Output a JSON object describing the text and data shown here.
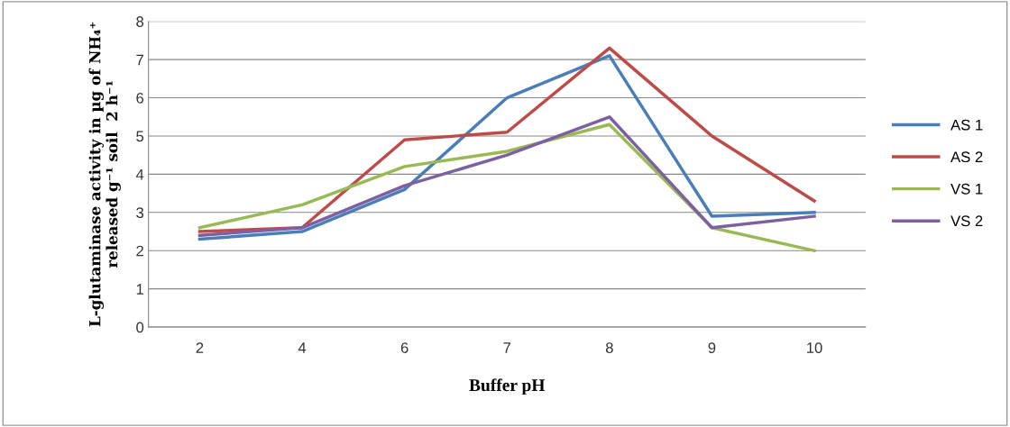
{
  "chart_data": {
    "type": "line",
    "xlabel": "Buffer pH",
    "ylabel": "L-glutaminase activity in µg of NH₄⁺\nreleased g⁻¹ soil  2 h⁻¹",
    "categories": [
      "2",
      "4",
      "6",
      "7",
      "8",
      "9",
      "10"
    ],
    "series": [
      {
        "name": "AS 1",
        "color": "#4a7ebb",
        "values": [
          2.3,
          2.5,
          3.6,
          6.0,
          7.1,
          2.9,
          3.0
        ]
      },
      {
        "name": "AS 2",
        "color": "#be4b48",
        "values": [
          2.5,
          2.6,
          4.9,
          5.1,
          7.3,
          5.0,
          3.3
        ]
      },
      {
        "name": "VS 1",
        "color": "#98b954",
        "values": [
          2.6,
          3.2,
          4.2,
          4.6,
          5.3,
          2.6,
          2.0
        ]
      },
      {
        "name": "VS 2",
        "color": "#7d60a0",
        "values": [
          2.4,
          2.6,
          3.7,
          4.5,
          5.5,
          2.6,
          2.9
        ]
      }
    ],
    "ylim": [
      0,
      8
    ],
    "yticks": [
      0,
      1,
      2,
      3,
      4,
      5,
      6,
      7,
      8
    ],
    "grid": "y",
    "legend": "right",
    "marker": "none",
    "line_style": "solid"
  }
}
